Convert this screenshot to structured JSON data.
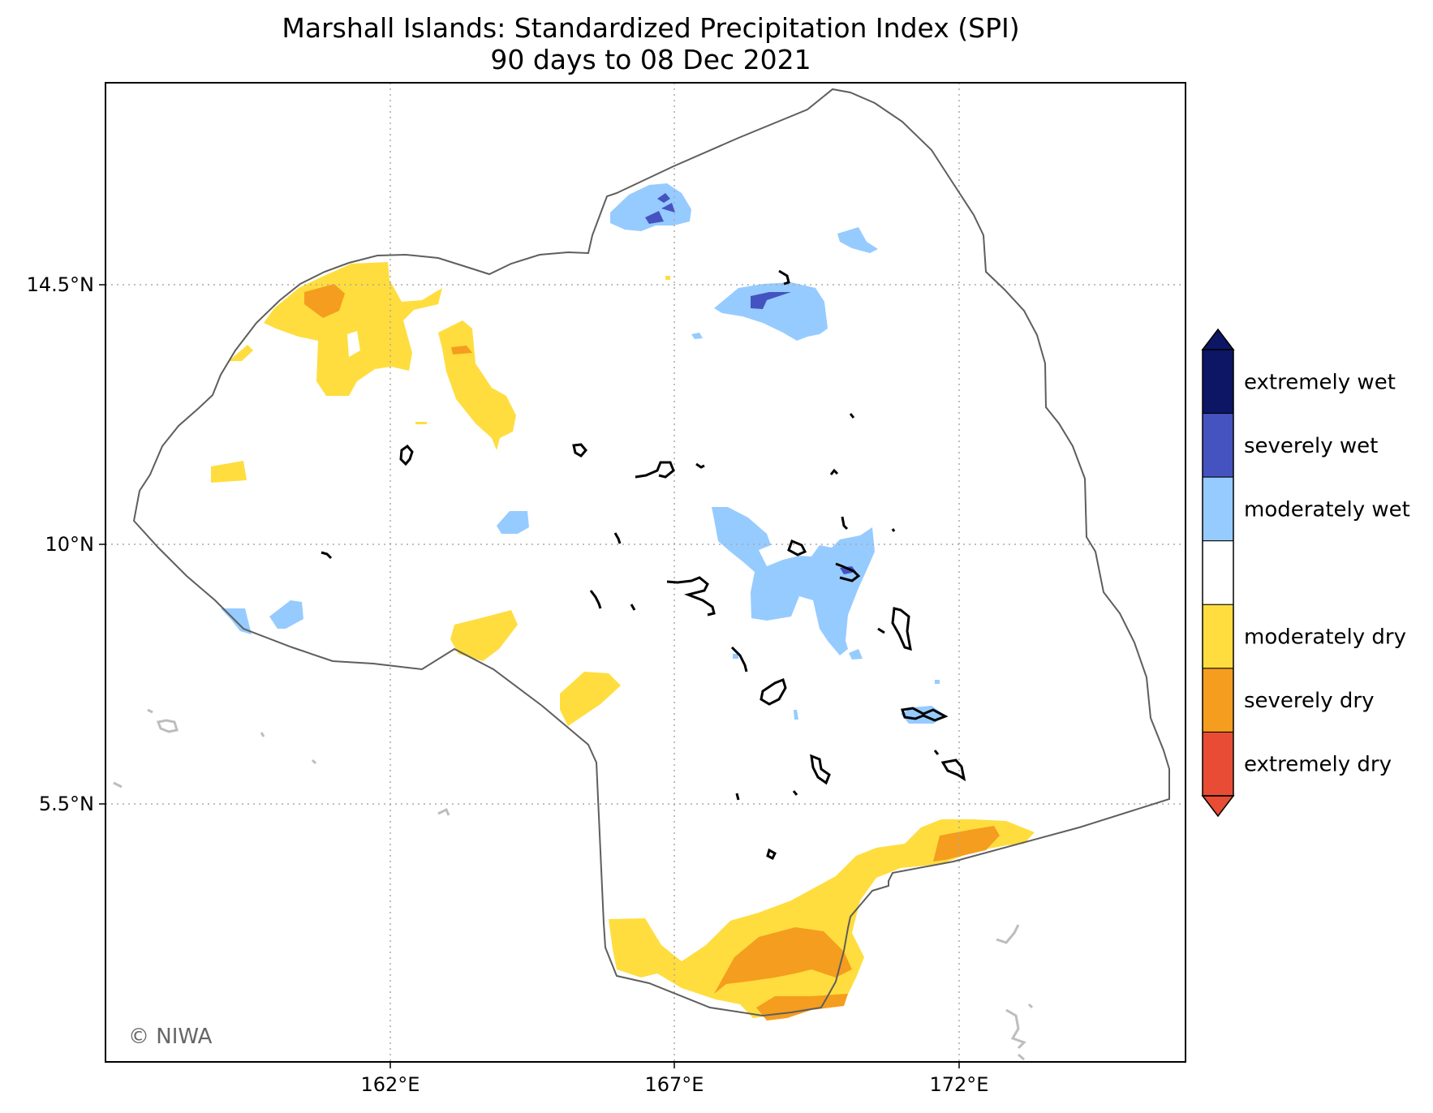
{
  "title": {
    "line1": "Marshall Islands: Standardized Precipitation Index (SPI)",
    "line2": "90 days to 08 Dec 2021"
  },
  "map": {
    "extent": {
      "lon": [
        157.0,
        176.0
      ],
      "lat": [
        1.0,
        18.0
      ]
    },
    "gridlines": {
      "lon": [
        162,
        167,
        172
      ],
      "lat": [
        5.5,
        10,
        14.5
      ],
      "style": "dotted"
    },
    "lon_ticks": [
      "162°E",
      "167°E",
      "172°E"
    ],
    "lat_ticks": [
      "14.5°N",
      "10°N",
      "5.5°N"
    ],
    "credit": "© NIWA",
    "features": [
      "EEZ-boundary",
      "atoll-outlines",
      "SPI-contours"
    ]
  },
  "colorbar": {
    "extend": "both",
    "upper_arrow_color": "#0c1664",
    "lower_arrow_color": "#e84c35",
    "classes": [
      {
        "label": "extremely wet",
        "color": "#0c1664"
      },
      {
        "label": "severely wet",
        "color": "#4553c1"
      },
      {
        "label": "moderately wet",
        "color": "#96cbff"
      },
      {
        "label": "",
        "color": "#ffffff"
      },
      {
        "label": "moderately dry",
        "color": "#ffdd3e"
      },
      {
        "label": "severely dry",
        "color": "#f59d1f"
      },
      {
        "label": "extremely dry",
        "color": "#e84c35"
      }
    ]
  }
}
